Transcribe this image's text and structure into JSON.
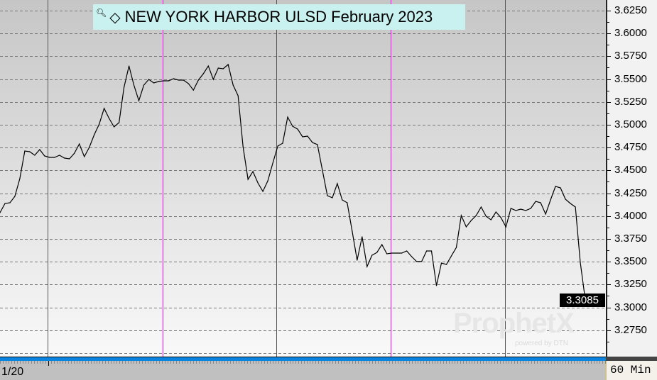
{
  "chart_data": {
    "type": "line",
    "title": "NEW YORK HARBOR ULSD February 2023",
    "interval": "60 Min",
    "x_start_label": "1/20",
    "ylim": [
      3.255,
      3.64
    ],
    "y_ticks": [
      "3.6250",
      "3.6000",
      "3.5750",
      "3.5500",
      "3.5250",
      "3.5000",
      "3.4750",
      "3.4500",
      "3.4250",
      "3.4000",
      "3.3750",
      "3.3500",
      "3.3250",
      "3.3000",
      "3.2750"
    ],
    "last_price": "3.3085",
    "grid": true,
    "colors": {
      "line": "#000000",
      "session_line": "#ff00ff",
      "day_line": "#555555",
      "bottom_bar": "#0a84e0",
      "title_bg": "#c9f1ef"
    },
    "values": [
      3.4037,
      3.4138,
      3.4146,
      3.4216,
      3.441,
      3.4713,
      3.4705,
      3.4666,
      3.4728,
      3.4658,
      3.4643,
      3.4643,
      3.4666,
      3.4635,
      3.4627,
      3.4689,
      3.479,
      3.4651,
      3.4752,
      3.4891,
      3.5008,
      3.5179,
      3.507,
      3.4977,
      3.5023,
      3.5411,
      3.5644,
      3.5435,
      3.5264,
      3.5435,
      3.5497,
      3.5458,
      3.5474,
      3.5481,
      3.5481,
      3.5505,
      3.5489,
      3.5489,
      3.545,
      3.538,
      3.5489,
      3.5559,
      3.5644,
      3.5497,
      3.5621,
      3.5613,
      3.566,
      3.5435,
      3.5318,
      3.4759,
      3.4402,
      3.4488,
      3.4363,
      3.427,
      3.4387,
      3.4581,
      3.4767,
      3.4798,
      3.5085,
      3.4984,
      3.4953,
      3.4868,
      3.4876,
      3.4806,
      3.4783,
      3.4503,
      3.4224,
      3.42,
      3.4356,
      3.4177,
      3.4146,
      3.3836,
      3.3517,
      3.3773,
      3.3447,
      3.3571,
      3.3602,
      3.3688,
      3.3587,
      3.3595,
      3.3595,
      3.3595,
      3.3618,
      3.3556,
      3.3502,
      3.3502,
      3.3618,
      3.3618,
      3.3238,
      3.3486,
      3.347,
      3.3564,
      3.3657,
      3.4006,
      3.3882,
      3.3952,
      3.4006,
      3.4099,
      3.3998,
      3.396,
      3.4045,
      3.3983,
      3.3882,
      3.4084,
      3.4061,
      3.4076,
      3.4061,
      3.4084,
      3.4161,
      3.4146,
      3.4022,
      3.4177,
      3.4325,
      3.4309,
      3.4185,
      3.4138,
      3.4099,
      3.3494,
      3.3085,
      3.3085
    ]
  },
  "watermark": {
    "brand": "ProphetX",
    "sub": "powered by DTN"
  }
}
